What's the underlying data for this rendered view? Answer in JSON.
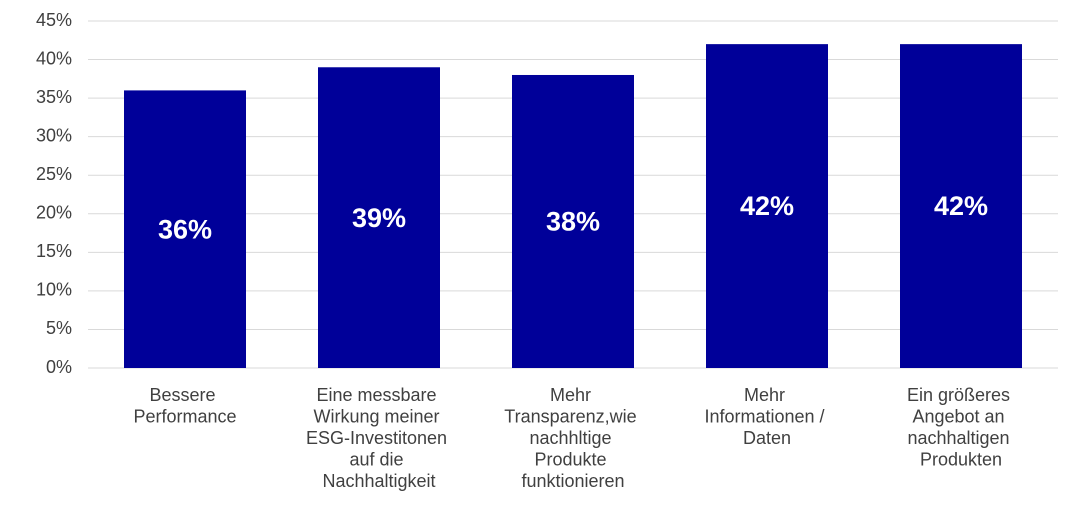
{
  "chart_data": {
    "type": "bar",
    "categories": [
      "Bessere Performance",
      "Eine messbare Wirkung meiner ESG-Investitonen auf die Nachhaltigkeit",
      "Mehr Transparenz,wie nachhltige Produkte funktionieren",
      "Mehr Informationen / Daten",
      "Ein größeres Angebot an nachhaltigen Produkten"
    ],
    "values": [
      36,
      39,
      38,
      42,
      42
    ],
    "value_labels": [
      "36%",
      "39%",
      "38%",
      "42%",
      "42%"
    ],
    "color": "#000099",
    "ylim": [
      0,
      45
    ],
    "yticks": [
      {
        "value": 0,
        "label": "0%"
      },
      {
        "value": 5,
        "label": "5%"
      },
      {
        "value": 10,
        "label": "10%"
      },
      {
        "value": 15,
        "label": "15%"
      },
      {
        "value": 20,
        "label": "20%"
      },
      {
        "value": 25,
        "label": "25%"
      },
      {
        "value": 30,
        "label": "30%"
      },
      {
        "value": 35,
        "label": "35%"
      },
      {
        "value": 40,
        "label": "40%"
      },
      {
        "value": 45,
        "label": "45%"
      }
    ],
    "grid": true
  }
}
